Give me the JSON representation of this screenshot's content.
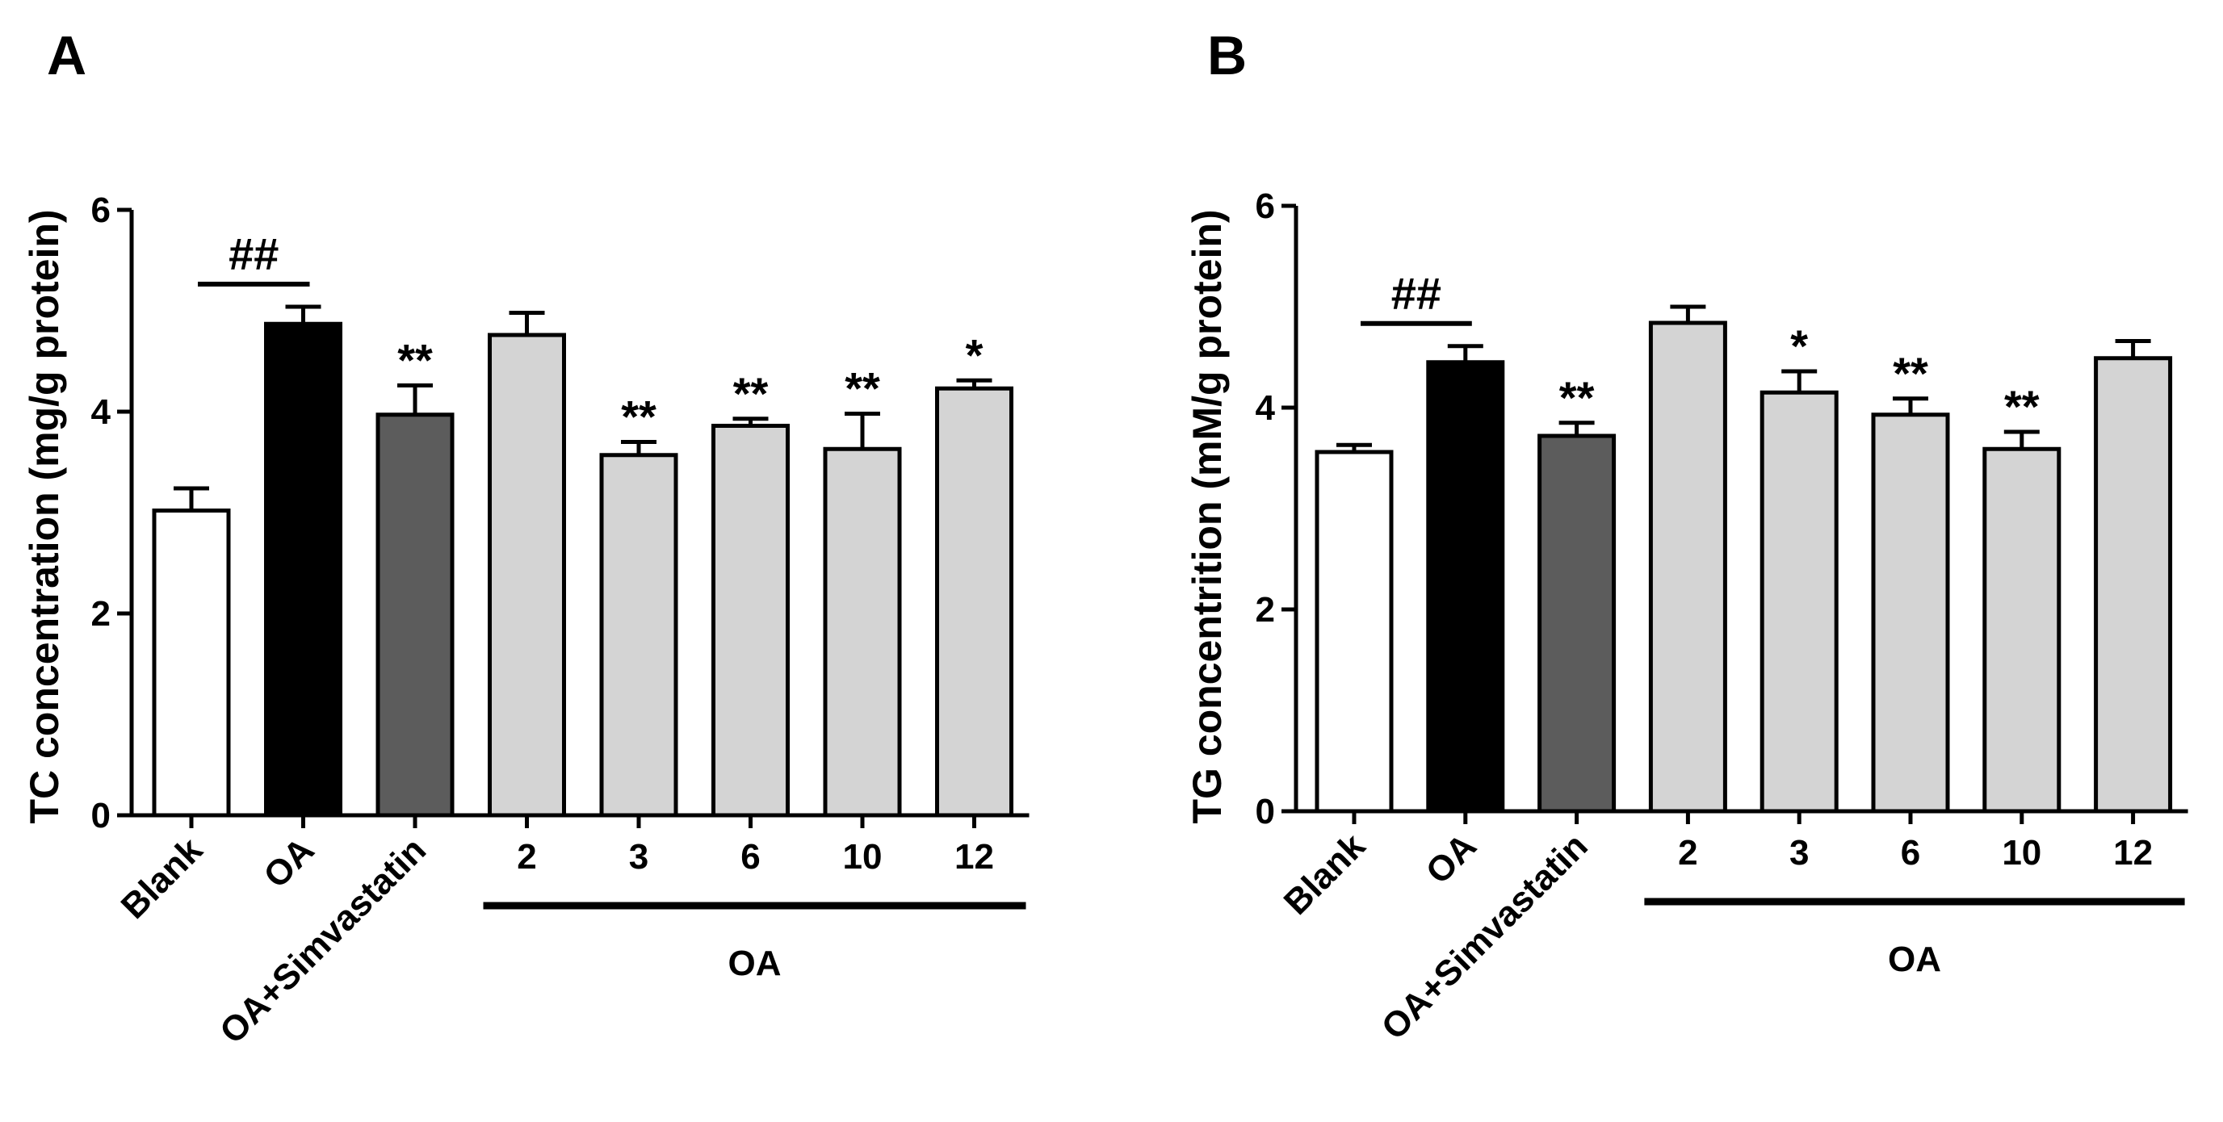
{
  "chart_data": [
    {
      "type": "bar",
      "panel": "A",
      "title": "",
      "xlabel": "",
      "ylabel": "TC concentration (mg/g protein)",
      "ylim": [
        0,
        6
      ],
      "yticks": [
        "0",
        "2",
        "4",
        "6"
      ],
      "categories": [
        "Blank",
        "OA",
        "OA+Simvastatin",
        "2",
        "3",
        "6",
        "10",
        "12"
      ],
      "values": [
        3.02,
        4.87,
        3.97,
        4.76,
        3.57,
        3.86,
        3.63,
        4.23
      ],
      "errors": [
        0.22,
        0.17,
        0.29,
        0.22,
        0.13,
        0.07,
        0.35,
        0.08
      ],
      "fills": [
        "#ffffff",
        "#000000",
        "#5c5c5c",
        "#d4d4d4",
        "#d4d4d4",
        "#d4d4d4",
        "#d4d4d4",
        "#d4d4d4"
      ],
      "significance": [
        "",
        "",
        "**",
        "",
        "**",
        "**",
        "**",
        "*"
      ],
      "comparison_label": "##",
      "group_label": "OA"
    },
    {
      "type": "bar",
      "panel": "B",
      "title": "",
      "xlabel": "",
      "ylabel": "TG concentrition (mM/g protein)",
      "ylim": [
        0,
        6
      ],
      "yticks": [
        "0",
        "2",
        "4",
        "6"
      ],
      "categories": [
        "Blank",
        "OA",
        "OA+Simvastatin",
        "2",
        "3",
        "6",
        "10",
        "12"
      ],
      "values": [
        3.56,
        4.45,
        3.72,
        4.84,
        4.15,
        3.93,
        3.59,
        4.49
      ],
      "errors": [
        0.07,
        0.16,
        0.13,
        0.16,
        0.21,
        0.16,
        0.17,
        0.17
      ],
      "fills": [
        "#ffffff",
        "#000000",
        "#5c5c5c",
        "#d4d4d4",
        "#d4d4d4",
        "#d4d4d4",
        "#d4d4d4",
        "#d4d4d4"
      ],
      "significance": [
        "",
        "",
        "**",
        "",
        "*",
        "**",
        "**",
        ""
      ],
      "comparison_label": "##",
      "group_label": "OA"
    }
  ]
}
